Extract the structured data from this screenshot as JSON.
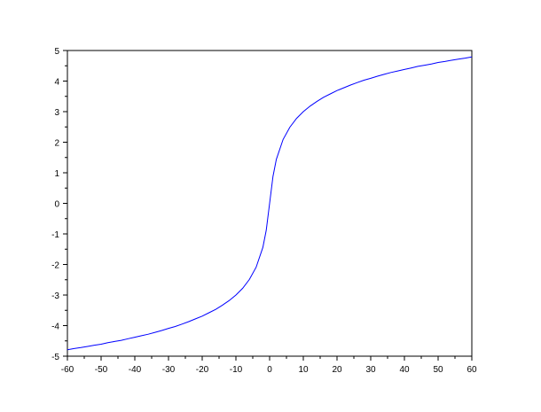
{
  "chart_data": {
    "type": "line",
    "title": "",
    "xlabel": "",
    "ylabel": "",
    "xlim": [
      -60,
      60
    ],
    "ylim": [
      -5,
      5
    ],
    "grid": false,
    "x_ticks": [
      -60,
      -50,
      -40,
      -30,
      -20,
      -10,
      0,
      10,
      20,
      30,
      40,
      50,
      60
    ],
    "y_ticks": [
      -5,
      -4,
      -3,
      -2,
      -1,
      0,
      1,
      2,
      3,
      4,
      5
    ],
    "x_tick_labels": [
      "-60",
      "-50",
      "-40",
      "-30",
      "-20",
      "-10",
      "0",
      "10",
      "20",
      "30",
      "40",
      "50",
      "60"
    ],
    "y_tick_labels": [
      "-5",
      "-4",
      "-3",
      "-2",
      "-1",
      "0",
      "1",
      "2",
      "3",
      "4",
      "5"
    ],
    "series": [
      {
        "color": "#0000ff",
        "x": [
          -60,
          -58,
          -56,
          -54,
          -52,
          -50,
          -48,
          -46,
          -44,
          -42,
          -40,
          -38,
          -36,
          -34,
          -32,
          -30,
          -28,
          -26,
          -24,
          -22,
          -20,
          -18,
          -16,
          -14,
          -12,
          -10,
          -8,
          -6,
          -4,
          -2,
          -1,
          0,
          1,
          2,
          4,
          6,
          8,
          10,
          12,
          14,
          16,
          18,
          20,
          22,
          24,
          26,
          28,
          30,
          32,
          34,
          36,
          38,
          40,
          42,
          44,
          46,
          48,
          50,
          52,
          54,
          56,
          58,
          60
        ],
        "y": [
          -4.79,
          -4.75,
          -4.72,
          -4.68,
          -4.64,
          -4.61,
          -4.56,
          -4.52,
          -4.48,
          -4.43,
          -4.38,
          -4.33,
          -4.28,
          -4.22,
          -4.16,
          -4.09,
          -4.03,
          -3.95,
          -3.87,
          -3.78,
          -3.69,
          -3.58,
          -3.47,
          -3.33,
          -3.18,
          -3.0,
          -2.78,
          -2.49,
          -2.09,
          -1.44,
          -0.88,
          0,
          0.88,
          1.44,
          2.09,
          2.49,
          2.78,
          3.0,
          3.18,
          3.33,
          3.47,
          3.58,
          3.69,
          3.78,
          3.87,
          3.95,
          4.03,
          4.09,
          4.16,
          4.22,
          4.28,
          4.33,
          4.38,
          4.43,
          4.48,
          4.52,
          4.56,
          4.61,
          4.64,
          4.68,
          4.72,
          4.75,
          4.79
        ]
      }
    ]
  }
}
